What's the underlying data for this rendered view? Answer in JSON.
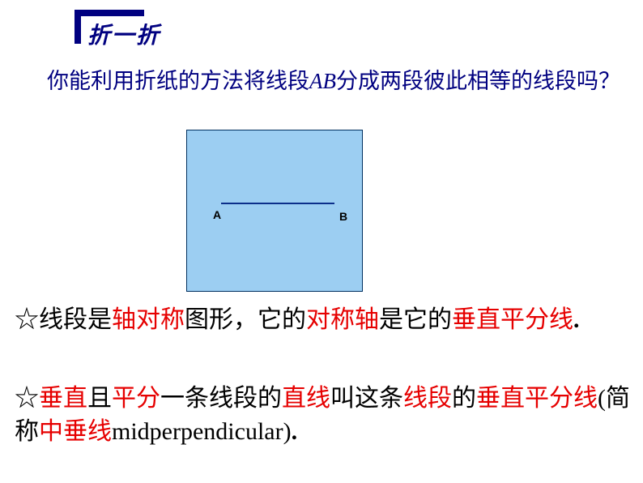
{
  "header": {
    "title": "折一折",
    "title_color": "#000080",
    "title_fontsize": 28,
    "l_shape_color": "#000080"
  },
  "question": {
    "prefix": "你能利用折纸的方法将线段",
    "seg_label": "AB",
    "suffix": "分成两段彼此相等的线段吗？",
    "color": "#000080",
    "fontsize": 27
  },
  "diagram": {
    "box_bg": "#9ccef2",
    "box_border": "#003060",
    "line_color": "#0b2e8a",
    "label_a": "A",
    "label_b": "B",
    "label_fontsize": 14
  },
  "statement1": {
    "parts": [
      {
        "t": "☆线段是",
        "c": "black"
      },
      {
        "t": "轴对称",
        "c": "red"
      },
      {
        "t": "图形，它的",
        "c": "black"
      },
      {
        "t": "对称轴",
        "c": "red"
      },
      {
        "t": "是它的",
        "c": "black"
      },
      {
        "t": "垂直平分线",
        "c": "red"
      },
      {
        "t": ".",
        "c": "period"
      }
    ],
    "fontsize": 30
  },
  "statement2": {
    "parts": [
      {
        "t": "☆",
        "c": "black"
      },
      {
        "t": "垂直",
        "c": "red"
      },
      {
        "t": "且",
        "c": "black"
      },
      {
        "t": "平分",
        "c": "red"
      },
      {
        "t": "一条线段的",
        "c": "black"
      },
      {
        "t": "直线",
        "c": "red"
      },
      {
        "t": "叫这条",
        "c": "black"
      },
      {
        "t": "线段",
        "c": "red"
      },
      {
        "t": "的",
        "c": "black"
      },
      {
        "t": "垂直平分线",
        "c": "red"
      },
      {
        "t": "(简称",
        "c": "black"
      },
      {
        "t": "中垂线",
        "c": "red"
      },
      {
        "t": "midperpendicular)",
        "c": "eng"
      },
      {
        "t": ".",
        "c": "period"
      }
    ],
    "fontsize": 30
  },
  "colors": {
    "red": "#e60000",
    "blue": "#000080",
    "black": "#000000"
  }
}
